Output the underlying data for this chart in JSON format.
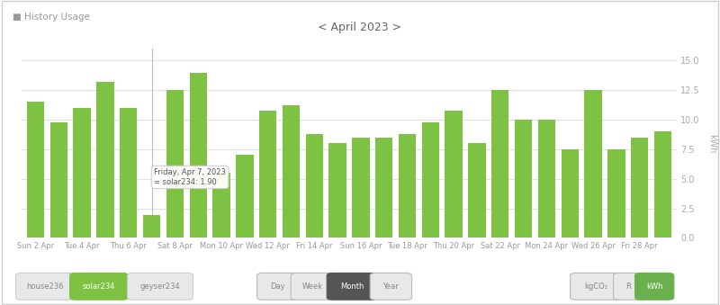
{
  "title": "< April 2023 >",
  "header": "■ History Usage",
  "ylabel": "kWh",
  "bar_color": "#7dc242",
  "background_color": "#ffffff",
  "grid_color": "#e0e0e0",
  "ylim": [
    0,
    16.0
  ],
  "yticks": [
    0,
    2.5,
    5,
    7.5,
    10,
    12.5,
    15
  ],
  "x_tick_labels": [
    "Sun 2 Apr",
    "",
    "Tue 4 Apr",
    "",
    "Thu 6 Apr",
    "",
    "Sat 8 Apr",
    "",
    "Mon 10 Apr",
    "",
    "Wed 12 Apr",
    "",
    "Fri 14 Apr",
    "",
    "Sun 16 Apr",
    "",
    "Tue 18 Apr",
    "",
    "Thu 20 Apr",
    "",
    "Sat 22 Apr",
    "",
    "Mon 24 Apr",
    "",
    "Wed 26 Apr",
    "",
    "Fri 28 Apr",
    ""
  ],
  "values": [
    11.5,
    9.8,
    11.0,
    13.2,
    11.0,
    1.9,
    12.5,
    14.0,
    5.5,
    7.0,
    10.8,
    11.2,
    8.8,
    8.0,
    8.5,
    8.5,
    8.8,
    9.8,
    10.8,
    8.0,
    12.5,
    10.0,
    10.0,
    7.5,
    12.5,
    7.5,
    8.5,
    9.0
  ],
  "highlight_idx": 5,
  "tooltip_text": "Friday, Apr 7, 2023\n= solar234: 1.90",
  "legend_items": [
    {
      "label": "house236",
      "active": false
    },
    {
      "label": "solar234",
      "active": true
    },
    {
      "label": "geyser234",
      "active": false
    }
  ],
  "button_labels": [
    "Day",
    "Week",
    "Month",
    "Year"
  ],
  "active_button": "Month",
  "right_buttons": [
    "kgCO₂",
    "R",
    "kWh"
  ],
  "active_right": "kWh",
  "active_button_color": "#555555",
  "active_right_color": "#6ab04c",
  "inactive_color": "#e8e8e8",
  "inactive_text_color": "#888888"
}
